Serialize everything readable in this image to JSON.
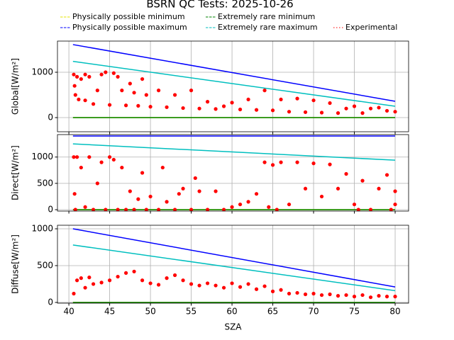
{
  "chart_data": [
    {
      "type": "line",
      "title": "BSRN QC Tests: 2025-10-26",
      "title_color": "#ffa500",
      "ylabel": "Global[W/m²]",
      "grid": true,
      "xlim": [
        38.6,
        81.65
      ],
      "xticks": [
        40,
        45,
        50,
        55,
        60,
        65,
        70,
        75,
        80
      ],
      "ylim": [
        -312,
        1687
      ],
      "yticks": [
        0,
        1000
      ],
      "series": [
        {
          "name": "Physically possible minimum",
          "color": "#e6e600",
          "kind": "line",
          "x": [
            40.5,
            80
          ],
          "values": [
            0,
            0
          ]
        },
        {
          "name": "Physically possible maximum",
          "color": "#0000ff",
          "kind": "line",
          "x": [
            40.5,
            80
          ],
          "values": [
            1610,
            360
          ]
        },
        {
          "name": "Extremely rare minimum",
          "color": "#008000",
          "kind": "line",
          "x": [
            40.5,
            80
          ],
          "values": [
            0,
            0
          ]
        },
        {
          "name": "Extremely rare maximum",
          "color": "#00bfbf",
          "kind": "line",
          "x": [
            40.5,
            80
          ],
          "values": [
            1240,
            250
          ]
        },
        {
          "name": "Experimental",
          "color": "#ff0000",
          "kind": "scatter",
          "x": [
            40.6,
            40.7,
            40.8,
            41,
            41.2,
            41.5,
            42,
            42,
            42.5,
            43,
            43.5,
            44,
            44.5,
            45,
            45.5,
            46,
            46.5,
            47,
            47.5,
            48,
            48.5,
            49,
            49.5,
            50,
            51,
            52,
            53,
            54,
            55,
            56,
            57,
            58,
            59,
            60,
            61,
            62,
            63,
            64,
            65,
            66,
            67,
            68,
            69,
            70,
            71,
            72,
            73,
            74,
            75,
            76,
            77,
            78,
            79,
            80
          ],
          "values": [
            950,
            700,
            500,
            900,
            400,
            850,
            950,
            380,
            900,
            300,
            600,
            950,
            1000,
            280,
            980,
            900,
            600,
            270,
            750,
            550,
            260,
            850,
            500,
            240,
            600,
            230,
            500,
            210,
            600,
            200,
            350,
            190,
            250,
            330,
            180,
            400,
            170,
            600,
            160,
            400,
            130,
            420,
            120,
            380,
            110,
            320,
            100,
            200,
            250,
            100,
            200,
            220,
            150,
            130
          ]
        }
      ]
    },
    {
      "type": "line",
      "ylabel": "Direct[W/m²]",
      "grid": true,
      "xlim": [
        38.6,
        81.65
      ],
      "xticks": [
        40,
        45,
        50,
        55,
        60,
        65,
        70,
        75,
        80
      ],
      "ylim": [
        -27,
        1427
      ],
      "yticks": [
        0,
        500,
        1000
      ],
      "series": [
        {
          "name": "Physically possible minimum",
          "color": "#e6e600",
          "kind": "line",
          "x": [
            40.5,
            80
          ],
          "values": [
            0,
            0
          ]
        },
        {
          "name": "Physically possible maximum",
          "color": "#0000ff",
          "kind": "line",
          "x": [
            40.5,
            80
          ],
          "values": [
            1400,
            1400
          ]
        },
        {
          "name": "Extremely rare minimum",
          "color": "#008000",
          "kind": "line",
          "x": [
            40.5,
            80
          ],
          "values": [
            0,
            0
          ]
        },
        {
          "name": "Extremely rare maximum",
          "color": "#00bfbf",
          "kind": "line",
          "x": [
            40.5,
            80
          ],
          "values": [
            1250,
            940
          ]
        },
        {
          "name": "Experimental",
          "color": "#ff0000",
          "kind": "scatter",
          "x": [
            40.6,
            40.7,
            40.8,
            41,
            41.5,
            42,
            42.5,
            43,
            43.5,
            44,
            44.5,
            45,
            45.5,
            46,
            46.5,
            47,
            47.5,
            48,
            48.5,
            49,
            49.5,
            50,
            51,
            51.5,
            52,
            53,
            53.5,
            54,
            55,
            55.5,
            56,
            57,
            58,
            59,
            60,
            61,
            62,
            63,
            64,
            64.5,
            65,
            65.5,
            66,
            67,
            68,
            69,
            70,
            71,
            72,
            73,
            74,
            75,
            75.5,
            76,
            77,
            78,
            79,
            79.5,
            80,
            80
          ],
          "values": [
            1000,
            300,
            0,
            1000,
            800,
            50,
            1000,
            0,
            500,
            900,
            0,
            1000,
            950,
            0,
            800,
            0,
            350,
            0,
            200,
            700,
            0,
            250,
            0,
            800,
            150,
            0,
            300,
            400,
            0,
            600,
            350,
            0,
            350,
            0,
            50,
            100,
            150,
            300,
            900,
            50,
            850,
            0,
            900,
            100,
            900,
            400,
            880,
            250,
            860,
            400,
            680,
            100,
            0,
            550,
            0,
            400,
            660,
            0,
            350,
            100
          ]
        }
      ]
    },
    {
      "type": "line",
      "ylabel": "Diffuse[W/m²]",
      "xlabel": "SZA",
      "grid": true,
      "xlim": [
        38.6,
        81.65
      ],
      "xticks": [
        40,
        45,
        50,
        55,
        60,
        65,
        70,
        75,
        80
      ],
      "ylim": [
        -10,
        1048
      ],
      "yticks": [
        0,
        500,
        1000
      ],
      "series": [
        {
          "name": "Physically possible minimum",
          "color": "#e6e600",
          "kind": "line",
          "x": [
            40.5,
            80
          ],
          "values": [
            0,
            0
          ]
        },
        {
          "name": "Physically possible maximum",
          "color": "#0000ff",
          "kind": "line",
          "x": [
            40.5,
            80
          ],
          "values": [
            1000,
            210
          ]
        },
        {
          "name": "Extremely rare minimum",
          "color": "#008000",
          "kind": "line",
          "x": [
            40.5,
            80
          ],
          "values": [
            0,
            0
          ]
        },
        {
          "name": "Extremely rare maximum",
          "color": "#00bfbf",
          "kind": "line",
          "x": [
            40.5,
            80
          ],
          "values": [
            780,
            160
          ]
        },
        {
          "name": "Experimental",
          "color": "#ff0000",
          "kind": "scatter",
          "x": [
            40.6,
            41,
            41.5,
            42,
            42.5,
            43,
            44,
            45,
            46,
            47,
            48,
            49,
            50,
            51,
            52,
            53,
            54,
            55,
            56,
            57,
            58,
            59,
            60,
            61,
            62,
            63,
            64,
            65,
            66,
            67,
            68,
            69,
            70,
            71,
            72,
            73,
            74,
            75,
            76,
            77,
            78,
            79,
            80
          ],
          "values": [
            120,
            300,
            330,
            200,
            340,
            250,
            270,
            300,
            350,
            400,
            420,
            300,
            260,
            240,
            330,
            370,
            300,
            250,
            230,
            260,
            230,
            200,
            260,
            210,
            250,
            180,
            220,
            150,
            170,
            120,
            130,
            110,
            120,
            100,
            110,
            90,
            100,
            80,
            100,
            70,
            90,
            80,
            80
          ]
        }
      ]
    }
  ]
}
